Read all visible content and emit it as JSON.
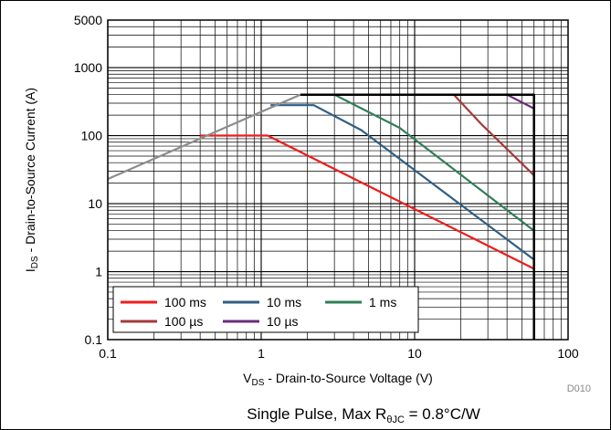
{
  "chart_data": {
    "type": "line",
    "x_scale": "log",
    "y_scale": "log",
    "xlim": [
      0.1,
      100
    ],
    "ylim": [
      0.1,
      5000
    ],
    "grid": true,
    "legend_position": "bottom-left",
    "xlabel_main": "V",
    "xlabel_sub": "DS",
    "xlabel_rest": " - Drain-to-Source Voltage (V)",
    "ylabel_main": "I",
    "ylabel_sub": "DS",
    "ylabel_rest": " - Drain-to-Source Current (A)",
    "x_ticks": [
      {
        "value": 0.1,
        "label": "0.1"
      },
      {
        "value": 1,
        "label": "1"
      },
      {
        "value": 10,
        "label": "10"
      },
      {
        "value": 100,
        "label": "100"
      }
    ],
    "y_ticks": [
      {
        "value": 0.1,
        "label": "0.1"
      },
      {
        "value": 1,
        "label": "1"
      },
      {
        "value": 10,
        "label": "10"
      },
      {
        "value": 100,
        "label": "100"
      },
      {
        "value": 1000,
        "label": "1000"
      },
      {
        "value": 5000,
        "label": "5000"
      }
    ],
    "series": [
      {
        "name": "100 ms",
        "color": "#ee1c1c",
        "points": [
          [
            0.4,
            100
          ],
          [
            1.1,
            100
          ],
          [
            60,
            1.1
          ]
        ]
      },
      {
        "name": "10 ms",
        "color": "#2e5f86",
        "points": [
          [
            1.15,
            280
          ],
          [
            2.2,
            280
          ],
          [
            4.5,
            120
          ],
          [
            60,
            1.5
          ]
        ]
      },
      {
        "name": "1 ms",
        "color": "#2f7f57",
        "points": [
          [
            2.2,
            400
          ],
          [
            3.0,
            400
          ],
          [
            8,
            130
          ],
          [
            60,
            4
          ]
        ]
      },
      {
        "name": "100 µs",
        "color": "#a63a3a",
        "points": [
          [
            10,
            400
          ],
          [
            18,
            400
          ],
          [
            27,
            150
          ],
          [
            60,
            26
          ]
        ]
      },
      {
        "name": "10 µs",
        "color": "#6a2c78",
        "points": [
          [
            38,
            400
          ],
          [
            40,
            400
          ],
          [
            60,
            250
          ]
        ]
      },
      {
        "color": "#8c8c8c",
        "points": [
          [
            0.1,
            23
          ],
          [
            1.8,
            400
          ]
        ]
      },
      {
        "color": "#000000",
        "points": [
          [
            1.8,
            400
          ],
          [
            60,
            400
          ],
          [
            60,
            0.1
          ]
        ]
      }
    ],
    "note": "D010",
    "caption_prefix": "Single Pulse, Max R",
    "caption_sub": "θJC",
    "caption_suffix": " = 0.8°C/W"
  }
}
